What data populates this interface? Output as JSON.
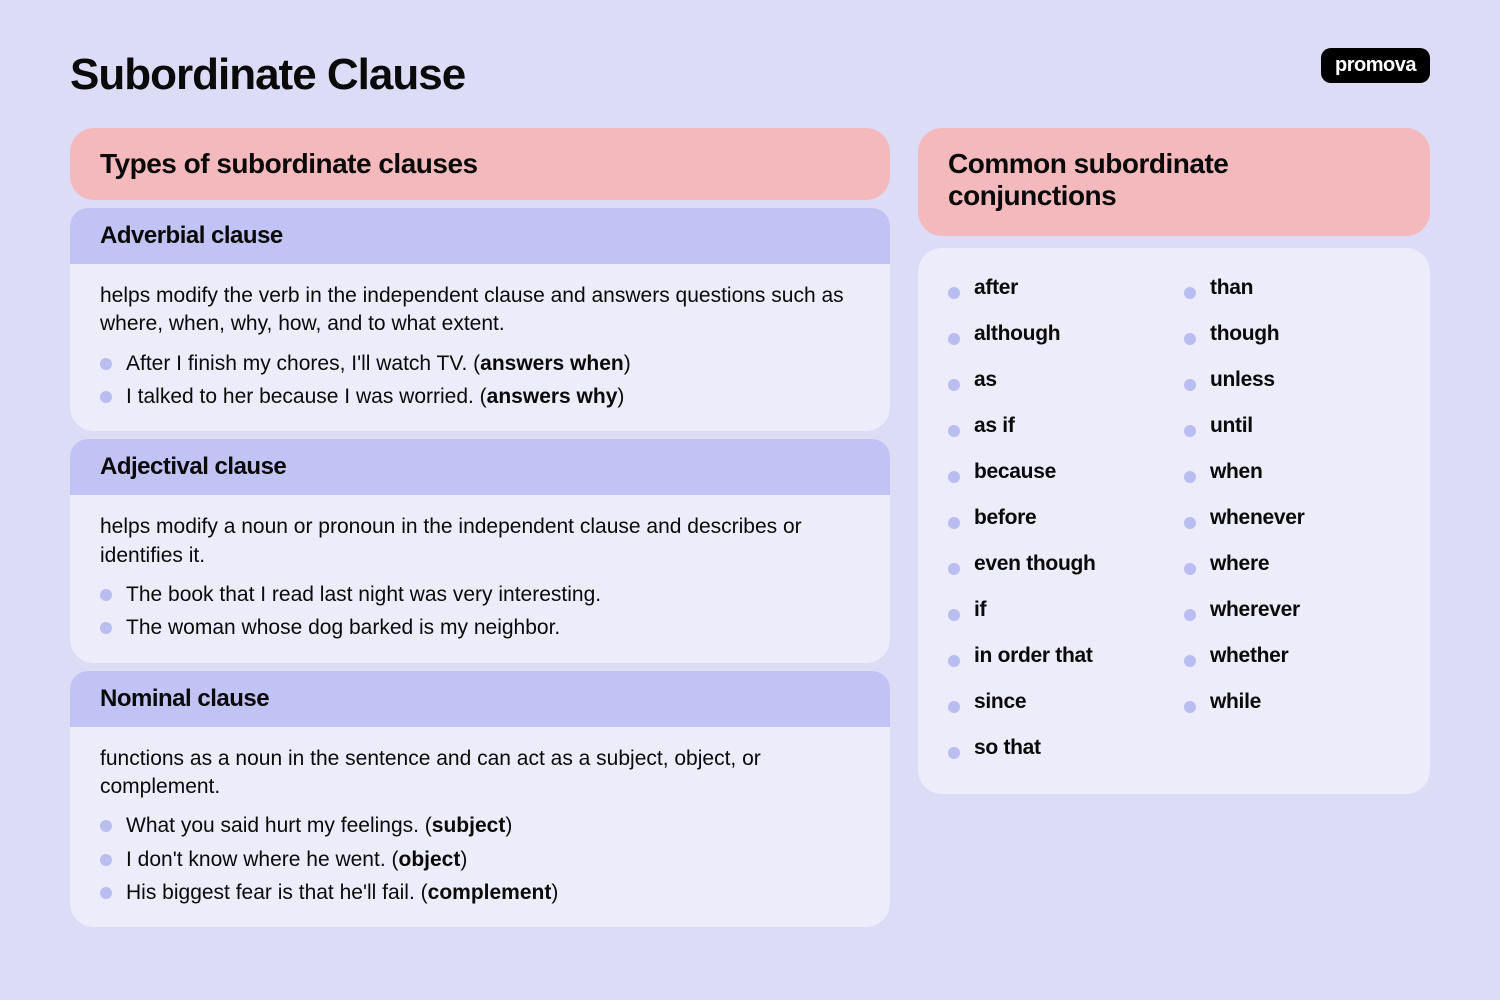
{
  "colors": {
    "page_bg": "#dcdcf7",
    "pink": "#f4b9bc",
    "purple_header": "#c0c3f4",
    "panel_bg": "#ececfa",
    "bullet": "#b9bdf0",
    "logo_bg": "#000000",
    "logo_text": "#ffffff",
    "text": "#0a0a0a"
  },
  "title": "Subordinate Clause",
  "logo": "promova",
  "left_header": "Types of subordinate clauses",
  "right_header": "Common subordinate conjunctions",
  "clauses": [
    {
      "name": "Adverbial clause",
      "desc": "helps modify the verb in the independent clause and answers questions such as where, when, why, how, and to what extent.",
      "examples": [
        {
          "text": "After I finish my chores, I'll watch TV. (",
          "bold": "answers when",
          "tail": ")"
        },
        {
          "text": "I talked to her because I was worried. (",
          "bold": "answers why",
          "tail": ")"
        }
      ]
    },
    {
      "name": "Adjectival clause",
      "desc": "helps modify a noun or pronoun in the independent clause and describes or identifies it.",
      "examples": [
        {
          "text": "The book that I read last night was very interesting.",
          "bold": "",
          "tail": ""
        },
        {
          "text": "The woman whose dog barked is my neighbor.",
          "bold": "",
          "tail": ""
        }
      ]
    },
    {
      "name": "Nominal clause",
      "desc": "functions as a noun in the sentence and can act as a subject, object, or complement.",
      "examples": [
        {
          "text": "What you said hurt my feelings. (",
          "bold": "subject",
          "tail": ")"
        },
        {
          "text": "I don't know where he went. (",
          "bold": "object",
          "tail": ")"
        },
        {
          "text": "His biggest fear is that he'll fail. (",
          "bold": "complement",
          "tail": ")"
        }
      ]
    }
  ],
  "conjunctions_left": [
    "after",
    "although",
    "as",
    "as if",
    "because",
    "before",
    "even though",
    "if",
    "in order that",
    "since",
    "so that"
  ],
  "conjunctions_right": [
    "than",
    "though",
    "unless",
    "until",
    "when",
    "whenever",
    "where",
    "wherever",
    "whether",
    "while"
  ]
}
